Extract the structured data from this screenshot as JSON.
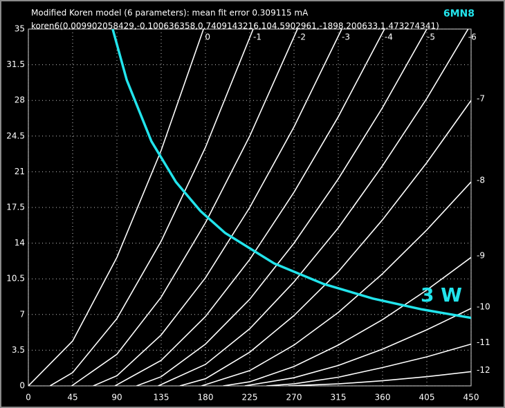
{
  "chart_data": {
    "type": "line",
    "title": "Modified Koren model (6 parameters): mean fit error 0.309115 mA",
    "subtitle": "koren6(0.009902058429,-0.100636358,0.7409143216,104.5902961,-1898.200633,1.473274341)",
    "tube": "6MN8",
    "xlim": [
      0,
      450
    ],
    "ylim": [
      0,
      35
    ],
    "xticks": [
      0,
      45,
      90,
      135,
      180,
      225,
      270,
      315,
      360,
      405,
      450
    ],
    "yticks": [
      0,
      3.5,
      7,
      10.5,
      14,
      17.5,
      21,
      24.5,
      28,
      31.5,
      35
    ],
    "grid": true,
    "series": [
      {
        "name": "0",
        "color": "#ffffff",
        "x": [
          0,
          45,
          90,
          135,
          178
        ],
        "values": [
          0,
          4.4,
          12.6,
          23.1,
          35
        ]
      },
      {
        "name": "-1",
        "color": "#ffffff",
        "x": [
          22,
          45,
          90,
          135,
          180,
          228.5
        ],
        "values": [
          0,
          1.3,
          6.6,
          14.2,
          23.4,
          35
        ]
      },
      {
        "name": "-2",
        "color": "#ffffff",
        "x": [
          44,
          90,
          135,
          180,
          225,
          273.5
        ],
        "values": [
          0,
          3.1,
          8.7,
          16,
          24.5,
          35
        ]
      },
      {
        "name": "-3",
        "color": "#ffffff",
        "x": [
          66,
          90,
          135,
          180,
          225,
          270,
          318.5
        ],
        "values": [
          0,
          1,
          5,
          10.6,
          17.5,
          25.4,
          35
        ]
      },
      {
        "name": "-4",
        "color": "#ffffff",
        "x": [
          88,
          135,
          180,
          225,
          270,
          315,
          362
        ],
        "values": [
          0,
          2.5,
          6.8,
          12.4,
          19,
          26.4,
          35
        ]
      },
      {
        "name": "-5",
        "color": "#ffffff",
        "x": [
          110,
          135,
          180,
          225,
          270,
          315,
          360,
          405
        ],
        "values": [
          0,
          0.9,
          4.1,
          8.5,
          14,
          20.3,
          27.3,
          35
        ]
      },
      {
        "name": "-6",
        "color": "#ffffff",
        "x": [
          132,
          180,
          225,
          270,
          315,
          360,
          405,
          447
        ],
        "values": [
          0,
          2.1,
          5.6,
          10.2,
          15.5,
          21.6,
          28.2,
          35
        ]
      },
      {
        "name": "-7",
        "color": "#ffffff",
        "x": [
          154,
          180,
          225,
          270,
          315,
          360,
          405,
          450
        ],
        "values": [
          0,
          0.7,
          3.3,
          6.9,
          11.2,
          16.3,
          21.9,
          28
        ]
      },
      {
        "name": "-8",
        "color": "#ffffff",
        "x": [
          176,
          225,
          270,
          315,
          360,
          405,
          450
        ],
        "values": [
          0,
          1.5,
          4,
          7.2,
          11,
          15.3,
          20
        ]
      },
      {
        "name": "-9",
        "color": "#ffffff",
        "x": [
          198,
          225,
          270,
          315,
          360,
          405,
          450
        ],
        "values": [
          0,
          0.4,
          1.9,
          4,
          6.5,
          9.4,
          12.6
        ]
      },
      {
        "name": "-10",
        "color": "#ffffff",
        "x": [
          220,
          270,
          315,
          360,
          405,
          450
        ],
        "values": [
          0,
          0.8,
          2,
          3.6,
          5.5,
          7.6
        ]
      },
      {
        "name": "-11",
        "color": "#ffffff",
        "x": [
          242,
          270,
          315,
          360,
          405,
          450
        ],
        "values": [
          0,
          0.2,
          0.85,
          1.8,
          2.85,
          4.1
        ]
      },
      {
        "name": "-12",
        "color": "#ffffff",
        "x": [
          264,
          315,
          360,
          405,
          450
        ],
        "values": [
          0,
          0.2,
          0.5,
          0.9,
          1.4
        ]
      },
      {
        "name": "3 W",
        "color": "#22e4ec",
        "x": [
          85.7,
          100,
          125,
          150,
          175,
          200,
          250,
          300,
          350,
          400,
          450
        ],
        "values": [
          35,
          30,
          24,
          20,
          17.14,
          15,
          12,
          10,
          8.57,
          7.5,
          6.67
        ]
      }
    ]
  }
}
